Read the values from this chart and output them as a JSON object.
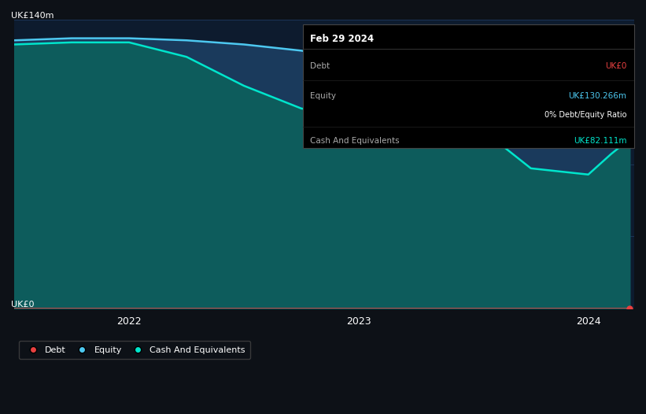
{
  "background_color": "#0d1117",
  "plot_bg_color": "#0d1b2e",
  "ylabel_top": "UK£140m",
  "ylabel_bottom": "UK£0",
  "xtick_labels": [
    "2022",
    "2023",
    "2024"
  ],
  "ylim": [
    0,
    140
  ],
  "equity_color": "#4dc8f0",
  "cash_color": "#00e5cc",
  "debt_color": "#e84040",
  "equity_fill": "#1a3a5c",
  "cash_fill": "#0d5c5c",
  "tooltip": {
    "date": "Feb 29 2024",
    "debt_label": "Debt",
    "debt_value": "UK£0",
    "debt_color": "#e84040",
    "equity_label": "Equity",
    "equity_value": "UK£130.266m",
    "equity_color": "#4dc8f0",
    "ratio_text": "0% Debt/Equity Ratio",
    "cash_label": "Cash And Equivalents",
    "cash_value": "UK£82.111m",
    "cash_color": "#00e5cc"
  },
  "legend": [
    {
      "label": "Debt",
      "color": "#e84040"
    },
    {
      "label": "Equity",
      "color": "#4dc8f0"
    },
    {
      "label": "Cash And Equivalents",
      "color": "#00e5cc"
    }
  ],
  "time_points": [
    2021.5,
    2021.75,
    2022.0,
    2022.25,
    2022.5,
    2022.75,
    2023.0,
    2023.25,
    2023.5,
    2023.75,
    2024.0,
    2024.1,
    2024.18
  ],
  "equity_values": [
    130,
    131,
    131,
    130,
    128,
    125,
    120,
    118,
    117,
    118,
    122,
    128,
    130.266
  ],
  "cash_values": [
    128,
    129,
    129,
    122,
    108,
    97,
    92,
    90,
    90,
    68,
    65,
    75,
    82.111
  ],
  "debt_values": [
    0,
    0,
    0,
    0,
    0,
    0,
    0,
    0,
    0,
    0,
    0,
    0,
    0
  ]
}
